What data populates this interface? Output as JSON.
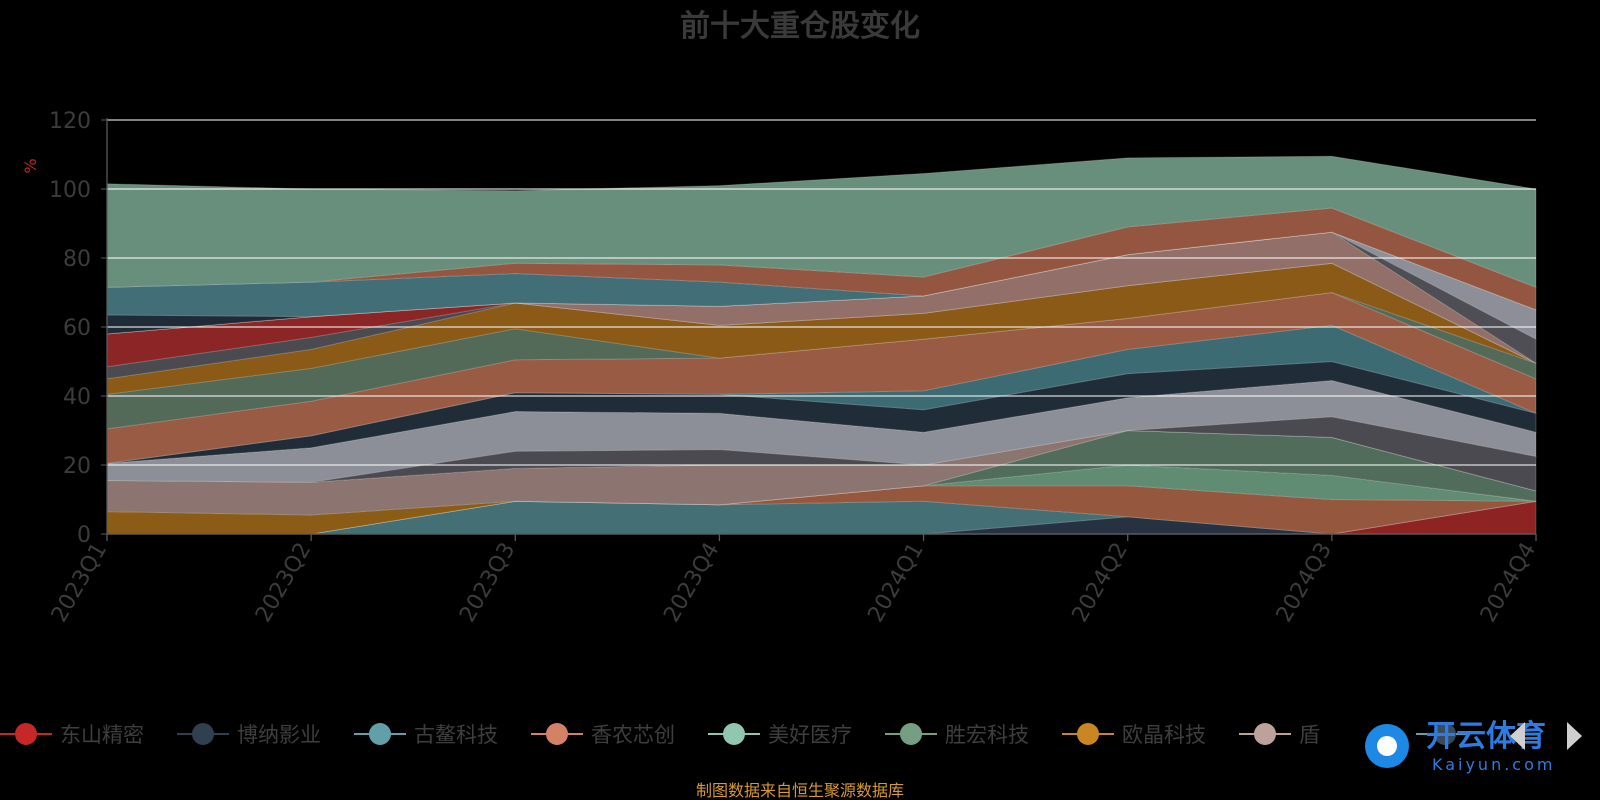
{
  "chart_data": {
    "type": "area",
    "stacked": true,
    "title": "前十大重仓股变化",
    "ylabel": "%",
    "ylim": [
      0,
      120
    ],
    "yticks": [
      0,
      20,
      40,
      60,
      80,
      100,
      120
    ],
    "categories": [
      "2023Q1",
      "2023Q2",
      "2023Q3",
      "2023Q4",
      "2024Q1",
      "2024Q2",
      "2024Q3",
      "2024Q4"
    ],
    "series_visible_in_legend": [
      "东山精密",
      "博纳影业",
      "古鳌科技",
      "香农芯创",
      "美好医疗",
      "胜宏科技",
      "欧晶科技",
      "盾"
    ],
    "series": [
      {
        "name": "东山精密",
        "color": "#8e2323",
        "values": [
          0,
          0,
          0,
          0,
          0,
          0,
          0,
          9.5
        ]
      },
      {
        "name": "博纳影业",
        "color": "#263241",
        "values": [
          0,
          0,
          0,
          0,
          0,
          5,
          0,
          0
        ]
      },
      {
        "name": "古鳌科技",
        "color": "#447075",
        "values": [
          0,
          0,
          9.5,
          8.5,
          9.5,
          0,
          0,
          0
        ]
      },
      {
        "name": "香农芯创",
        "color": "#95583f",
        "values": [
          0,
          0,
          0,
          0,
          4.5,
          9,
          10,
          0
        ]
      },
      {
        "name": "美好医疗",
        "color": "#5f8c72",
        "values": [
          0,
          0,
          0,
          0,
          0,
          6,
          7,
          0
        ]
      },
      {
        "name": "胜宏科技",
        "color": "#516c5a",
        "values": [
          0,
          0,
          0,
          0,
          0,
          10,
          11,
          3
        ]
      },
      {
        "name": "欧晶科技",
        "color": "#8a5c15",
        "values": [
          6.5,
          5.5,
          0,
          0,
          0,
          0,
          0,
          0
        ]
      },
      {
        "name": "盾",
        "color": "#8c7470",
        "values": [
          9,
          9.5,
          9.5,
          11.5,
          6,
          0,
          0,
          0
        ]
      },
      {
        "name": "",
        "color": "#4a4a50",
        "values": [
          0,
          0,
          5,
          4.5,
          0,
          0,
          6,
          10
        ]
      },
      {
        "name": "",
        "color": "#8c8f97",
        "values": [
          5,
          10,
          11.5,
          10.5,
          9.5,
          9.5,
          10.5,
          7
        ]
      },
      {
        "name": "",
        "color": "#202d38",
        "values": [
          0,
          3.5,
          5.5,
          5.5,
          6.5,
          7,
          5.5,
          5.5
        ]
      },
      {
        "name": "",
        "color": "#3d6b74",
        "values": [
          0,
          0,
          0,
          0,
          5.5,
          7,
          10.5,
          0
        ]
      },
      {
        "name": "",
        "color": "#9a5b45",
        "values": [
          10,
          10,
          9.5,
          10.5,
          15,
          9,
          9.5,
          10
        ]
      },
      {
        "name": "",
        "color": "#546a58",
        "values": [
          10,
          9.5,
          9,
          0,
          0,
          0,
          0,
          4.5
        ]
      },
      {
        "name": "",
        "color": "#8a5a16",
        "values": [
          4.5,
          5.5,
          7.5,
          9.5,
          7.5,
          9.5,
          8.5,
          0
        ]
      },
      {
        "name": "",
        "color": "#4a4a50",
        "values": [
          3.5,
          3.5,
          0,
          0,
          0,
          0,
          0,
          0
        ]
      },
      {
        "name": "",
        "color": "#8c2626",
        "values": [
          9.5,
          6,
          0,
          0,
          0,
          0,
          0,
          0
        ]
      },
      {
        "name": "",
        "color": "#926f68",
        "values": [
          0,
          0,
          0,
          5.5,
          5,
          9,
          9,
          0
        ]
      },
      {
        "name": "",
        "color": "#4f4e55",
        "values": [
          0,
          0,
          0,
          0,
          0,
          0,
          0,
          7
        ]
      },
      {
        "name": "",
        "color": "#8c8f97",
        "values": [
          0,
          0,
          0,
          0,
          0,
          0,
          0,
          8.5
        ]
      },
      {
        "name": "",
        "color": "#1f2b36",
        "values": [
          5.5,
          0,
          0,
          0,
          0,
          0,
          0,
          0
        ]
      },
      {
        "name": "",
        "color": "#416e77",
        "values": [
          8,
          10,
          8.5,
          7,
          0,
          0,
          0,
          0
        ]
      },
      {
        "name": "",
        "color": "#955641",
        "values": [
          0,
          0,
          3,
          5,
          5.5,
          8,
          7,
          6.5
        ]
      },
      {
        "name": "",
        "color": "#688f7c",
        "values": [
          30,
          27,
          21,
          23,
          30,
          20,
          15,
          28.5
        ]
      }
    ]
  },
  "source": "制图数据来自恒生聚源数据库",
  "watermark": {
    "brand": "开云体育",
    "sub": "Kaiyun.com"
  }
}
